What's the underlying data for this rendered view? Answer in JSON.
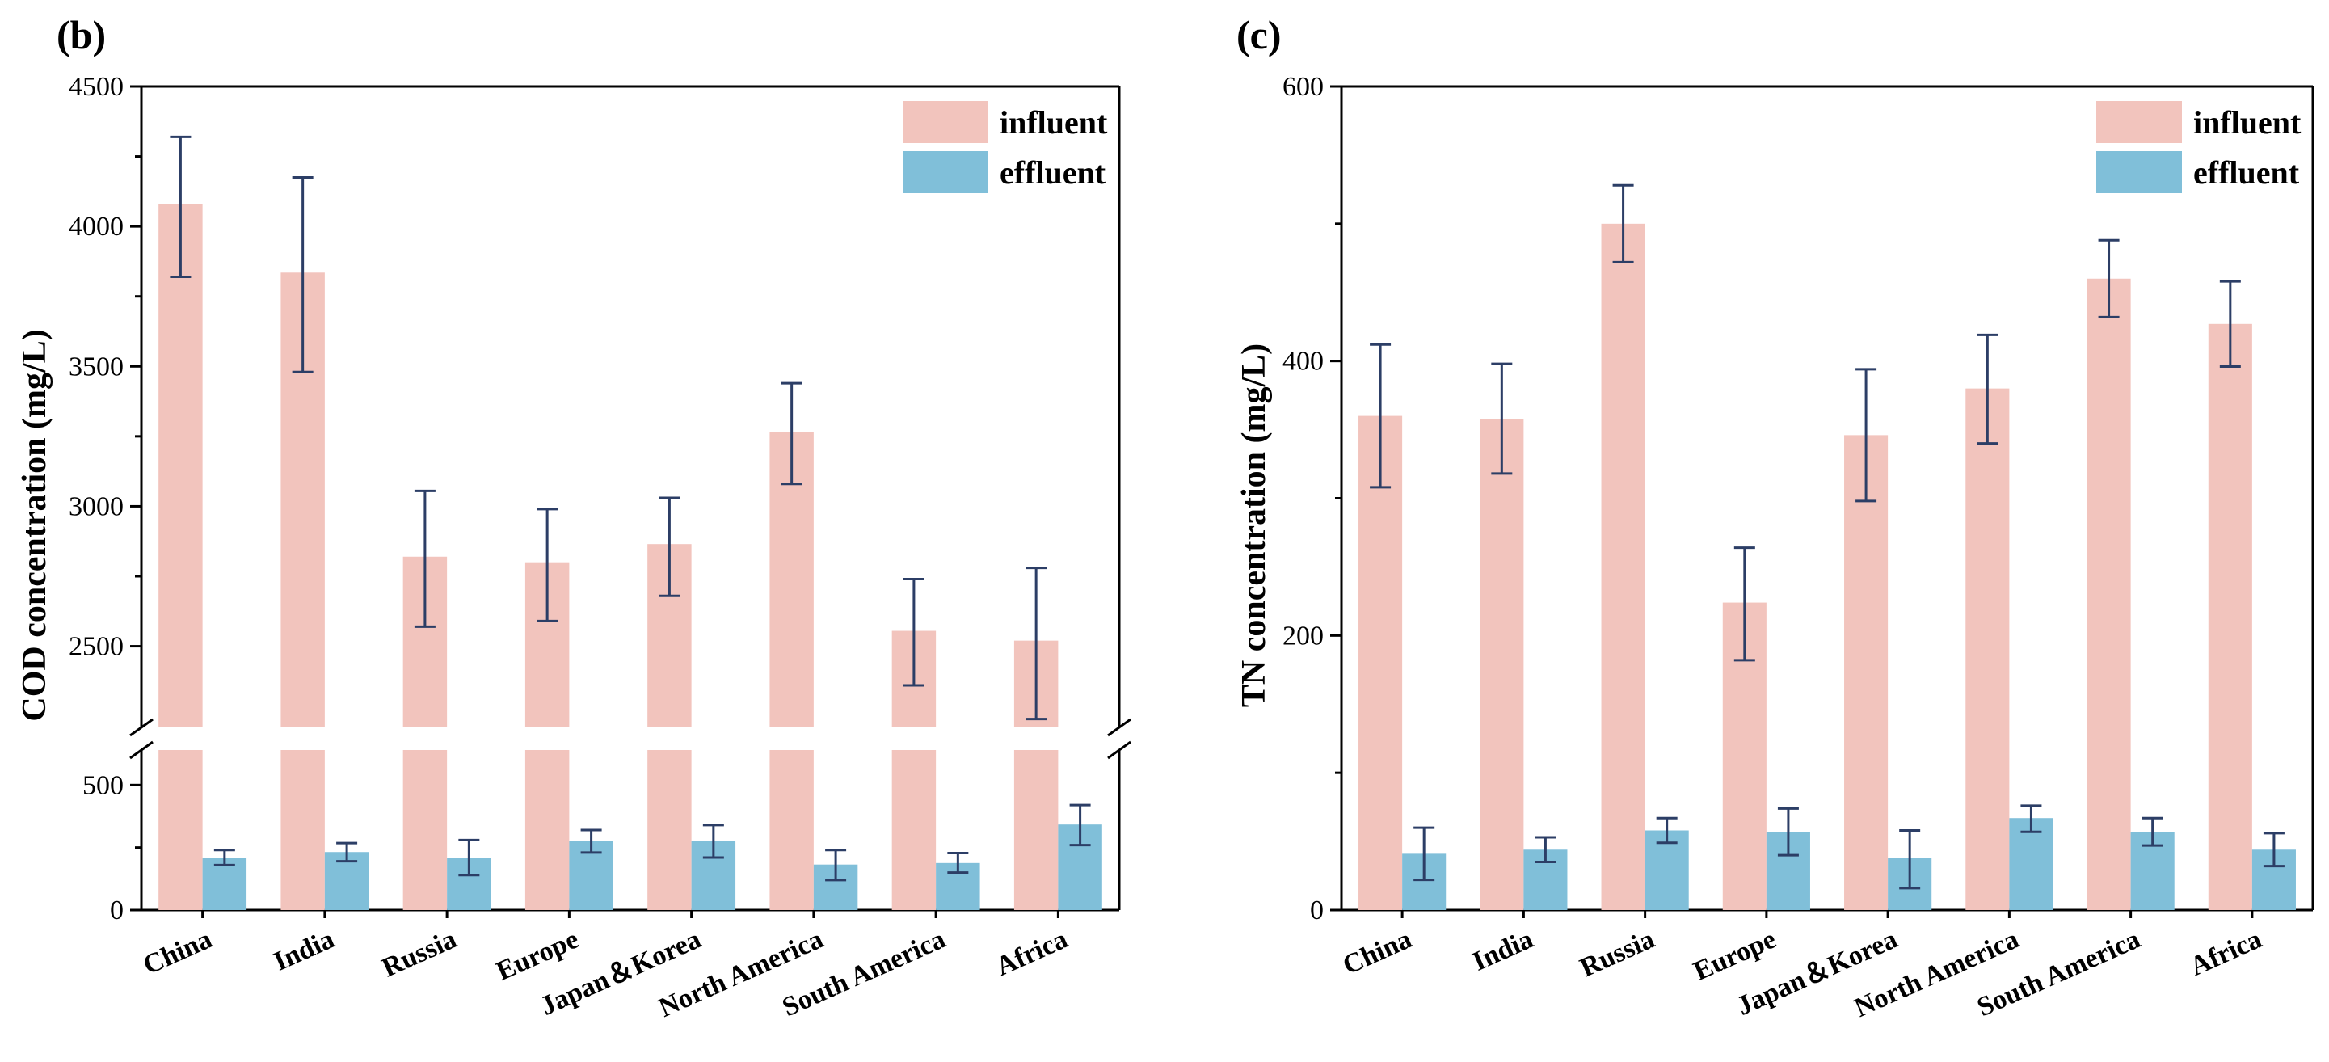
{
  "colors": {
    "influent": "#f2c4bd",
    "effluent": "#80bfd9",
    "errorbar": "#2c3e66",
    "axis": "#000000"
  },
  "chart_data": [
    {
      "panel_label": "(b)",
      "type": "bar",
      "broken_axis": true,
      "categories": [
        "China",
        "India",
        "Russia",
        "Europe",
        "Japan＆Korea",
        "North America",
        "South America",
        "Africa"
      ],
      "ylabel": "COD concentration (mg/L)",
      "lower_range": [
        0,
        640
      ],
      "upper_range": [
        2210,
        4500
      ],
      "lower_ticks": [
        0,
        250,
        500
      ],
      "lower_tick_labels": [
        "0",
        "",
        "500"
      ],
      "upper_ticks": [
        2500,
        2750,
        3000,
        3250,
        3500,
        3750,
        4000,
        4250,
        4500
      ],
      "upper_tick_labels": [
        "2500",
        "",
        "3000",
        "",
        "3500",
        "",
        "4000",
        "",
        "4500"
      ],
      "legend": [
        "influent",
        "effluent"
      ],
      "series": [
        {
          "name": "influent",
          "values": [
            4080,
            3835,
            2820,
            2800,
            2865,
            3265,
            2555,
            2520
          ],
          "err_low": [
            3820,
            3480,
            2570,
            2590,
            2680,
            3080,
            2360,
            2240
          ],
          "err_high": [
            4320,
            4175,
            3055,
            2990,
            3030,
            3440,
            2740,
            2780
          ]
        },
        {
          "name": "effluent",
          "values": [
            210,
            232,
            210,
            275,
            278,
            182,
            188,
            342
          ],
          "err_low": [
            180,
            195,
            140,
            230,
            210,
            120,
            150,
            260
          ],
          "err_high": [
            240,
            268,
            280,
            320,
            340,
            240,
            228,
            420
          ]
        }
      ]
    },
    {
      "panel_label": "(c)",
      "type": "bar",
      "broken_axis": false,
      "categories": [
        "China",
        "India",
        "Russia",
        "Europe",
        "Japan＆Korea",
        "North America",
        "South America",
        "Africa"
      ],
      "ylabel": "TN concentration (mg/L)",
      "ylim": [
        0,
        600
      ],
      "ticks": [
        0,
        100,
        200,
        300,
        400,
        500,
        600
      ],
      "tick_labels": [
        "0",
        "",
        "200",
        "",
        "400",
        "",
        "600"
      ],
      "legend": [
        "influent",
        "effluent"
      ],
      "series": [
        {
          "name": "influent",
          "values": [
            360,
            358,
            500,
            224,
            346,
            380,
            460,
            427
          ],
          "err_low": [
            308,
            318,
            472,
            182,
            298,
            340,
            432,
            396
          ],
          "err_high": [
            412,
            398,
            528,
            264,
            394,
            419,
            488,
            458
          ]
        },
        {
          "name": "effluent",
          "values": [
            41,
            44,
            58,
            57,
            38,
            67,
            57,
            44
          ],
          "err_low": [
            22,
            35,
            49,
            40,
            16,
            57,
            47,
            32
          ],
          "err_high": [
            60,
            53,
            67,
            74,
            58,
            76,
            67,
            56
          ]
        }
      ]
    }
  ]
}
